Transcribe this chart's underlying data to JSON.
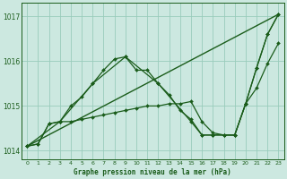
{
  "background_color": "#cce8e0",
  "grid_color": "#99ccbb",
  "line_color": "#1a5c1a",
  "title": "Graphe pression niveau de la mer (hPa)",
  "xlim": [
    -0.5,
    23.5
  ],
  "ylim": [
    1013.8,
    1017.3
  ],
  "yticks": [
    1014,
    1015,
    1016,
    1017
  ],
  "xticks": [
    0,
    1,
    2,
    3,
    4,
    5,
    6,
    7,
    8,
    9,
    10,
    11,
    12,
    13,
    14,
    15,
    16,
    17,
    18,
    19,
    20,
    21,
    22,
    23
  ],
  "series": [
    {
      "x": [
        0,
        23
      ],
      "y": [
        1014.1,
        1017.05
      ],
      "marker": null,
      "markersize": 0,
      "linewidth": 1.0
    },
    {
      "x": [
        0,
        1,
        2,
        3,
        4,
        5,
        6,
        7,
        8,
        9,
        10,
        11,
        12,
        13,
        14,
        15,
        16,
        17,
        18,
        19,
        20,
        21,
        22,
        23
      ],
      "y": [
        1014.1,
        1014.15,
        1014.6,
        1014.65,
        1015.0,
        1015.2,
        1015.5,
        1015.8,
        1016.05,
        1016.1,
        1015.8,
        1015.8,
        1015.5,
        1015.25,
        1014.9,
        1014.7,
        1014.35,
        1014.35,
        1014.35,
        1014.35,
        1015.05,
        1015.85,
        1016.6,
        1017.05
      ],
      "marker": "D",
      "markersize": 2.0,
      "linewidth": 0.9
    },
    {
      "x": [
        0,
        3,
        6,
        9,
        12,
        15,
        16,
        17,
        18,
        19,
        20,
        21,
        22,
        23
      ],
      "y": [
        1014.1,
        1014.65,
        1015.5,
        1016.1,
        1015.5,
        1014.65,
        1014.35,
        1014.35,
        1014.35,
        1014.35,
        1015.05,
        1015.85,
        1016.6,
        1017.05
      ],
      "marker": "D",
      "markersize": 2.0,
      "linewidth": 0.9
    },
    {
      "x": [
        0,
        1,
        2,
        3,
        4,
        5,
        6,
        7,
        8,
        9,
        10,
        11,
        12,
        13,
        14,
        15,
        16,
        17,
        18,
        19,
        20,
        21,
        22,
        23
      ],
      "y": [
        1014.1,
        1014.15,
        1014.6,
        1014.65,
        1014.65,
        1014.7,
        1014.75,
        1014.8,
        1014.85,
        1014.9,
        1014.95,
        1015.0,
        1015.0,
        1015.05,
        1015.05,
        1015.1,
        1014.65,
        1014.4,
        1014.35,
        1014.35,
        1015.05,
        1015.4,
        1015.95,
        1016.4
      ],
      "marker": "D",
      "markersize": 2.0,
      "linewidth": 0.9
    }
  ]
}
